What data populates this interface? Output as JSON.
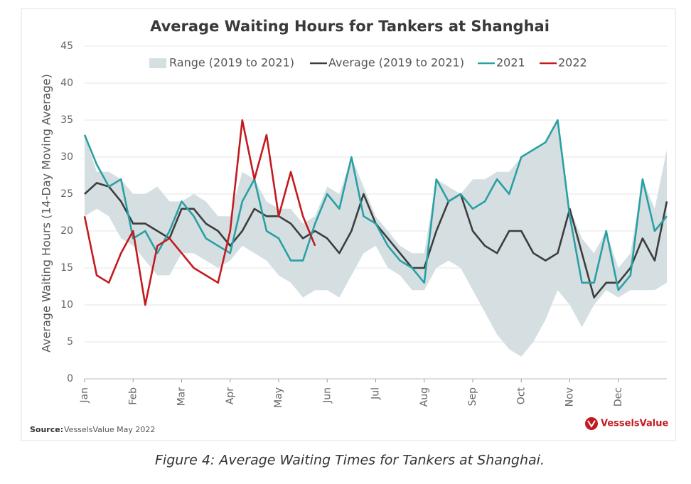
{
  "chart_data": {
    "type": "line",
    "title": "Average Waiting Hours for Tankers at Shanghai",
    "y_label": "Average Waiting Hours (14-Day Moving Average)",
    "xlim": [
      0,
      12
    ],
    "xticks": [
      {
        "value": 0,
        "label": "Jan"
      },
      {
        "value": 1,
        "label": "Feb"
      },
      {
        "value": 2,
        "label": "Mar"
      },
      {
        "value": 3,
        "label": "Apr"
      },
      {
        "value": 4,
        "label": "May"
      },
      {
        "value": 5,
        "label": "Jun"
      },
      {
        "value": 6,
        "label": "Jul"
      },
      {
        "value": 7,
        "label": "Aug"
      },
      {
        "value": 8,
        "label": "Sep"
      },
      {
        "value": 9,
        "label": "Oct"
      },
      {
        "value": 10,
        "label": "Nov"
      },
      {
        "value": 11,
        "label": "Dec"
      }
    ],
    "ylim": [
      0,
      45
    ],
    "yticks": [
      0,
      5,
      10,
      15,
      20,
      25,
      30,
      35,
      40,
      45
    ],
    "grid": true,
    "x": [
      0,
      0.25,
      0.5,
      0.75,
      1,
      1.25,
      1.5,
      1.75,
      2,
      2.25,
      2.5,
      2.75,
      3,
      3.25,
      3.5,
      3.75,
      4,
      4.25,
      4.5,
      4.75,
      5,
      5.25,
      5.5,
      5.75,
      6,
      6.25,
      6.5,
      6.75,
      7,
      7.25,
      7.5,
      7.75,
      8,
      8.25,
      8.5,
      8.75,
      9,
      9.25,
      9.5,
      9.75,
      10,
      10.25,
      10.5,
      10.75,
      11,
      11.25,
      11.5,
      11.75,
      12
    ],
    "band": {
      "name": "Range (2019 to 2021)",
      "color": "#d5dfe2",
      "high": [
        33,
        28,
        28,
        27,
        25,
        25,
        26,
        24,
        24,
        25,
        24,
        22,
        22,
        28,
        27,
        24,
        23,
        23,
        21,
        22,
        26,
        25,
        30,
        26,
        22,
        20,
        18,
        17,
        17,
        27,
        26,
        25,
        27,
        27,
        28,
        28,
        30,
        31,
        32,
        35,
        23,
        19,
        17,
        20,
        15,
        17,
        27,
        23,
        31
      ],
      "low": [
        22,
        23,
        22,
        19,
        18,
        16,
        14,
        14,
        17,
        17,
        16,
        15,
        16,
        18,
        17,
        16,
        14,
        13,
        11,
        12,
        12,
        11,
        14,
        17,
        18,
        15,
        14,
        12,
        12,
        15,
        16,
        15,
        12,
        9,
        6,
        4,
        3,
        5,
        8,
        12,
        10,
        7,
        10,
        12,
        11,
        12,
        12,
        12,
        13
      ]
    },
    "series": [
      {
        "name": "Average (2019 to 2021)",
        "color": "#3d3d3d",
        "values": [
          25,
          26.5,
          26,
          24,
          21,
          21,
          20,
          19,
          23,
          23,
          21,
          20,
          18,
          20,
          23,
          22,
          22,
          21,
          19,
          20,
          19,
          17,
          20,
          25,
          21,
          19,
          17,
          15,
          15,
          20,
          24,
          25,
          20,
          18,
          17,
          20,
          20,
          17,
          16,
          17,
          23,
          17,
          11,
          13,
          13,
          15,
          19,
          16,
          24
        ]
      },
      {
        "name": "2021",
        "color": "#2aa0a4",
        "values": [
          33,
          29,
          26,
          27,
          19,
          20,
          17,
          20,
          24,
          22,
          19,
          18,
          17,
          24,
          27,
          20,
          19,
          16,
          16,
          21,
          25,
          23,
          30,
          22,
          21,
          18,
          16,
          15,
          13,
          27,
          24,
          25,
          23,
          24,
          27,
          25,
          30,
          31,
          32,
          35,
          22,
          13,
          13,
          20,
          12,
          14,
          27,
          20,
          22
        ]
      },
      {
        "name": "2022",
        "color": "#c41a1f",
        "values": [
          22,
          14,
          13,
          17,
          20,
          10,
          18,
          19,
          17,
          15,
          14,
          13,
          20,
          35,
          27,
          33,
          22,
          28,
          22,
          18,
          null,
          null,
          null,
          null,
          null,
          null,
          null,
          null,
          null,
          null,
          null,
          null,
          null,
          null,
          null,
          null,
          null,
          null,
          null,
          null,
          null,
          null,
          null,
          null,
          null,
          null,
          null,
          null,
          null
        ]
      }
    ]
  },
  "source_label": "Source:",
  "source_text": "VesselsValue May 2022",
  "logo": "VesselsValue",
  "caption": "Figure 4: Average Waiting Times for Tankers at Shanghai."
}
